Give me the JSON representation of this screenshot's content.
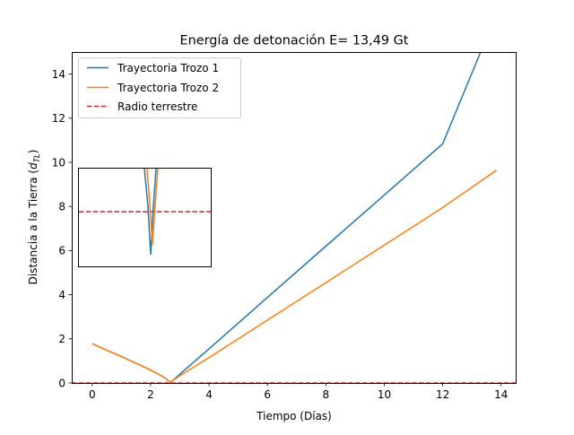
{
  "chart_data": {
    "type": "line",
    "title": "Energía de detonación E= 13,49 Gt",
    "xlabel": "Tiempo (Días)",
    "ylabel_main": "Distancia a la Tierra (",
    "ylabel_sym": "d",
    "ylabel_sub": "TL",
    "ylabel_close": ")",
    "xlim": [
      -0.7,
      14.5
    ],
    "ylim": [
      0,
      15
    ],
    "xticks": [
      0,
      2,
      4,
      6,
      8,
      10,
      12,
      14
    ],
    "yticks": [
      0,
      2,
      4,
      6,
      8,
      10,
      12,
      14
    ],
    "grid": false,
    "legend_position": "top-left",
    "series": [
      {
        "name": "Trayectoria Trozo 1",
        "color": "#1f77b4",
        "style": "solid",
        "x": [
          0,
          0.5,
          1,
          1.5,
          2,
          2.3,
          2.5,
          2.67,
          2.75,
          3,
          4,
          6,
          8,
          10,
          12,
          13.3
        ],
        "y": [
          1.78,
          1.48,
          1.2,
          0.9,
          0.58,
          0.38,
          0.22,
          0.03,
          0.1,
          0.4,
          1.55,
          3.88,
          6.2,
          8.52,
          10.84,
          15.0
        ]
      },
      {
        "name": "Trayectoria Trozo 2",
        "color": "#ff7f0e",
        "style": "solid",
        "x": [
          0,
          0.5,
          1,
          1.5,
          2,
          2.3,
          2.5,
          2.67,
          2.75,
          3,
          4,
          6,
          8,
          10,
          12,
          13.85
        ],
        "y": [
          1.78,
          1.48,
          1.2,
          0.9,
          0.58,
          0.38,
          0.22,
          0.03,
          0.1,
          0.33,
          1.15,
          2.85,
          4.55,
          6.25,
          7.95,
          9.65
        ]
      },
      {
        "name": "Radio terrestre",
        "color": "#d62728",
        "style": "dashed",
        "x": [
          -0.7,
          14.5
        ],
        "y": [
          0.0,
          0.0
        ]
      }
    ],
    "inset": {
      "description_visible": "zoomed view near closest approach",
      "series_colors": [
        "#1f77b4",
        "#ff7f0e",
        "#d62728"
      ]
    }
  }
}
